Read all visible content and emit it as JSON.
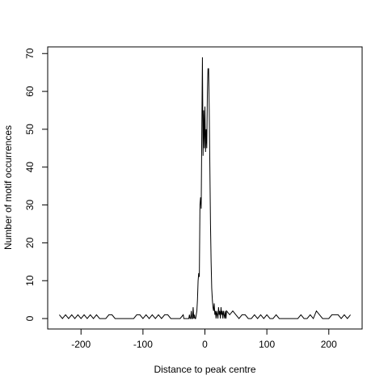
{
  "chart_data": {
    "type": "line",
    "xlabel": "Distance to peak centre",
    "ylabel": "Number of motif occurrences",
    "color": "#000000",
    "xlim": [
      -253.8,
      253.8
    ],
    "ylim": [
      -2.76,
      71.76
    ],
    "xticks": [
      -200,
      -100,
      0,
      100,
      200
    ],
    "yticks": [
      0,
      10,
      20,
      30,
      40,
      50,
      60,
      70
    ],
    "x": [
      -235,
      -230,
      -225,
      -220,
      -215,
      -210,
      -205,
      -200,
      -195,
      -190,
      -185,
      -180,
      -175,
      -170,
      -165,
      -160,
      -155,
      -150,
      -145,
      -140,
      -135,
      -130,
      -125,
      -120,
      -115,
      -110,
      -105,
      -100,
      -95,
      -90,
      -85,
      -80,
      -75,
      -70,
      -65,
      -60,
      -55,
      -50,
      -45,
      -40,
      -35,
      -34,
      -33,
      -32,
      -31,
      -30,
      -29,
      -28,
      -27,
      -26,
      -25,
      -24,
      -23,
      -22,
      -21,
      -20,
      -19,
      -18,
      -17,
      -16,
      -15,
      -14,
      -13,
      -12,
      -11,
      -10,
      -9,
      -8,
      -7,
      -6,
      -5,
      -4,
      -3,
      -2,
      -1,
      0,
      1,
      2,
      3,
      4,
      5,
      6,
      7,
      8,
      9,
      10,
      11,
      12,
      13,
      14,
      15,
      16,
      17,
      18,
      19,
      20,
      21,
      22,
      23,
      24,
      25,
      26,
      27,
      28,
      29,
      30,
      31,
      32,
      33,
      34,
      35,
      40,
      45,
      50,
      55,
      60,
      65,
      70,
      75,
      80,
      85,
      90,
      95,
      100,
      105,
      110,
      115,
      120,
      125,
      130,
      135,
      140,
      145,
      150,
      155,
      160,
      165,
      170,
      175,
      180,
      185,
      190,
      195,
      200,
      205,
      210,
      215,
      220,
      225,
      230,
      235
    ],
    "values": [
      1,
      0,
      1,
      0,
      1,
      0,
      1,
      0,
      1,
      0,
      1,
      0,
      1,
      0,
      0,
      0,
      1,
      1,
      0,
      0,
      0,
      0,
      0,
      0,
      0,
      1,
      1,
      0,
      1,
      0,
      1,
      0,
      1,
      0,
      1,
      1,
      0,
      0,
      0,
      0,
      1,
      0,
      0,
      0,
      0,
      0,
      0,
      0,
      0,
      0,
      1,
      0,
      0,
      2,
      0,
      0,
      3,
      0,
      1,
      0,
      0,
      1,
      2,
      5,
      10,
      12,
      11,
      30,
      32,
      29,
      50,
      69,
      43,
      55,
      45,
      56,
      44,
      50,
      45,
      60,
      66,
      66,
      55,
      40,
      25,
      15,
      8,
      5,
      3,
      2,
      4,
      1,
      2,
      0,
      2,
      1,
      0,
      3,
      1,
      2,
      0,
      3,
      1,
      2,
      0,
      2,
      1,
      0,
      2,
      0,
      2,
      1,
      2,
      1,
      0,
      1,
      1,
      0,
      0,
      1,
      0,
      1,
      0,
      1,
      0,
      0,
      1,
      0,
      0,
      0,
      0,
      0,
      0,
      0,
      1,
      0,
      0,
      1,
      0,
      2,
      1,
      0,
      0,
      0,
      1,
      1,
      1,
      0,
      1,
      0,
      1
    ]
  }
}
